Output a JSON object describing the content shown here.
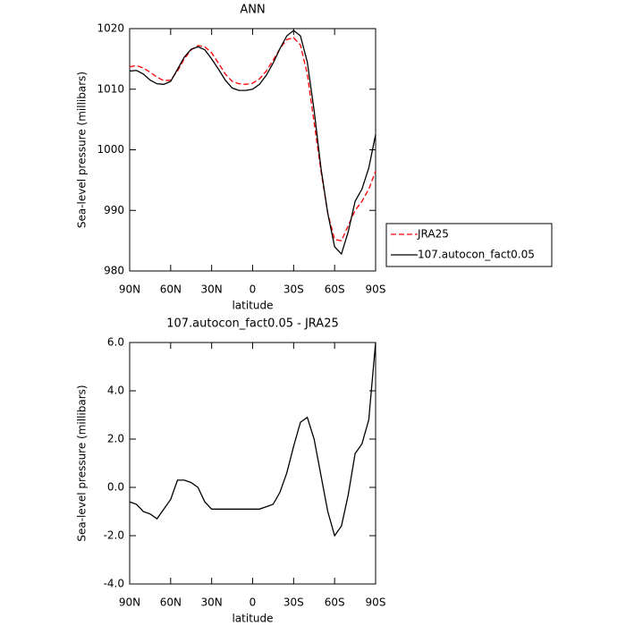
{
  "chart_data": [
    {
      "type": "line",
      "title": "ANN",
      "xlabel": "latitude",
      "ylabel": "Sea-level pressure (millibars)",
      "x": [
        90,
        85,
        80,
        75,
        70,
        65,
        60,
        55,
        50,
        45,
        40,
        35,
        30,
        25,
        20,
        15,
        10,
        5,
        0,
        -5,
        -10,
        -15,
        -20,
        -25,
        -30,
        -35,
        -40,
        -45,
        -50,
        -55,
        -60,
        -65,
        -70,
        -75,
        -80,
        -85,
        -90
      ],
      "series": [
        {
          "name": "JRA25",
          "color": "#ff0000",
          "linestyle": "dashed",
          "values": [
            1013.7,
            1013.9,
            1013.5,
            1012.8,
            1012.0,
            1011.4,
            1011.5,
            1013.0,
            1015.0,
            1016.5,
            1017.2,
            1017.0,
            1016.0,
            1014.3,
            1012.5,
            1011.3,
            1010.9,
            1010.8,
            1011.0,
            1011.7,
            1013.0,
            1014.8,
            1016.7,
            1018.2,
            1018.5,
            1017.3,
            1012.5,
            1004.5,
            996.5,
            989.5,
            985.2,
            985.0,
            987.5,
            990.0,
            991.5,
            993.5,
            996.5
          ]
        },
        {
          "name": "107.autocon_fact0.05",
          "color": "#000000",
          "linestyle": "solid",
          "values": [
            1013.0,
            1013.1,
            1012.5,
            1011.5,
            1010.9,
            1010.8,
            1011.3,
            1013.3,
            1015.3,
            1016.6,
            1017.0,
            1016.5,
            1015.0,
            1013.3,
            1011.5,
            1010.2,
            1009.8,
            1009.8,
            1010.0,
            1010.8,
            1012.3,
            1014.3,
            1016.7,
            1018.8,
            1019.7,
            1018.8,
            1014.5,
            1006.5,
            997.0,
            989.5,
            984.0,
            982.8,
            986.5,
            991.5,
            993.5,
            997.0,
            1002.5
          ]
        }
      ],
      "xlim": [
        90,
        -90
      ],
      "xticks": [
        {
          "value": 90,
          "label": "90N"
        },
        {
          "value": 60,
          "label": "60N"
        },
        {
          "value": 30,
          "label": "30N"
        },
        0,
        {
          "value": -30,
          "label": "30S"
        },
        {
          "value": -60,
          "label": "60S"
        },
        {
          "value": -90,
          "label": "90S"
        }
      ],
      "ylim": [
        980,
        1020
      ],
      "yticks": [
        980,
        990,
        1000,
        1010,
        1020
      ],
      "legend": "right"
    },
    {
      "type": "line",
      "title": "107.autocon_fact0.05 - JRA25",
      "xlabel": "latitude",
      "ylabel": "Sea-level pressure (millibars)",
      "x": [
        90,
        85,
        80,
        75,
        70,
        65,
        60,
        55,
        50,
        45,
        40,
        35,
        30,
        25,
        20,
        15,
        10,
        5,
        0,
        -5,
        -10,
        -15,
        -20,
        -25,
        -30,
        -35,
        -40,
        -45,
        -50,
        -55,
        -60,
        -65,
        -70,
        -75,
        -80,
        -85,
        -90
      ],
      "color": "#000000",
      "values": [
        -0.6,
        -0.7,
        -1.0,
        -1.1,
        -1.3,
        -0.9,
        -0.5,
        0.3,
        0.3,
        0.2,
        0.0,
        -0.6,
        -0.9,
        -0.9,
        -0.9,
        -0.9,
        -0.9,
        -0.9,
        -0.9,
        -0.9,
        -0.8,
        -0.7,
        -0.2,
        0.6,
        1.7,
        2.7,
        2.9,
        2.0,
        0.5,
        -1.0,
        -2.0,
        -1.6,
        -0.3,
        1.4,
        1.8,
        2.8,
        6.0
      ],
      "xlim": [
        90,
        -90
      ],
      "xticks": [
        {
          "value": 90,
          "label": "90N"
        },
        {
          "value": 60,
          "label": "60N"
        },
        {
          "value": 30,
          "label": "30N"
        },
        0,
        {
          "value": -30,
          "label": "30S"
        },
        {
          "value": -60,
          "label": "60S"
        },
        {
          "value": -90,
          "label": "90S"
        }
      ],
      "ylim": [
        -4,
        6
      ],
      "yticks": [
        {
          "value": -4,
          "label": "-4.0"
        },
        {
          "value": -2,
          "label": "-2.0"
        },
        {
          "value": 0,
          "label": "0.0"
        },
        {
          "value": 2,
          "label": "2.0"
        },
        {
          "value": 4,
          "label": "4.0"
        },
        {
          "value": 6,
          "label": "6.0"
        }
      ]
    }
  ]
}
